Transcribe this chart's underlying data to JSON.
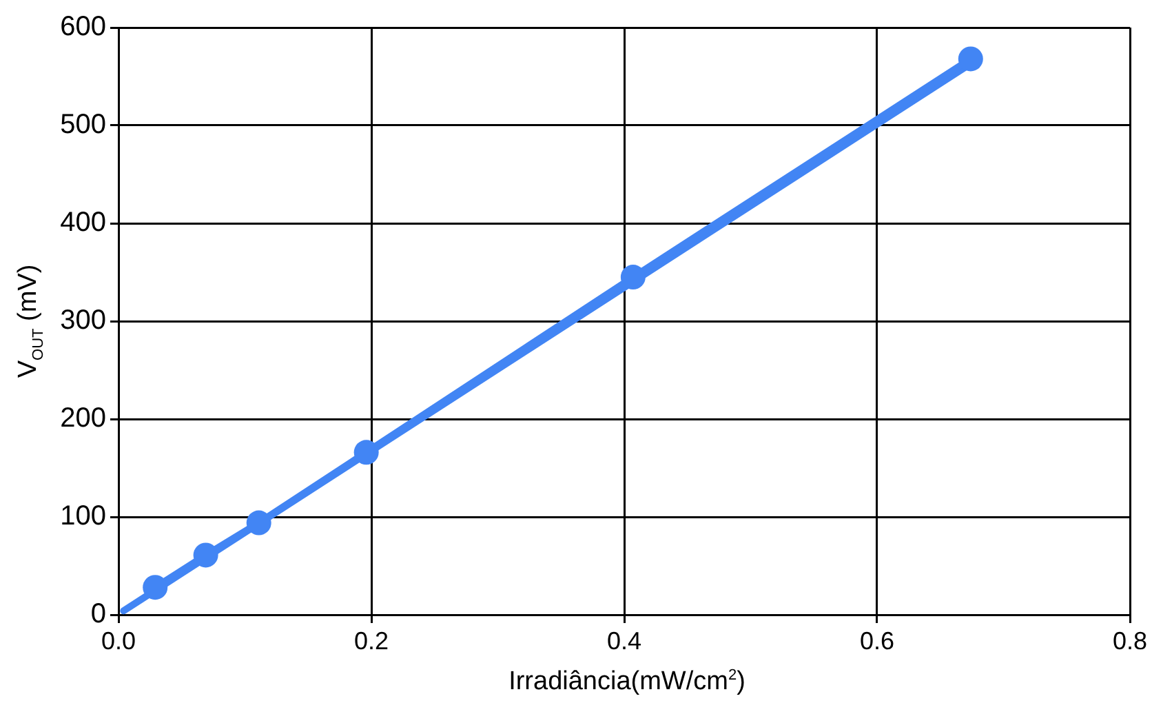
{
  "chart_data": {
    "type": "line",
    "xlabel": "Irradiância(mW/cm$^{2}$)",
    "ylabel": "V$_{OUT}$ (mV)",
    "xlim": [
      0,
      0.8
    ],
    "xticks": [
      {
        "value": 0,
        "label": "0.0"
      },
      {
        "value": 0.2,
        "label": "0.2"
      },
      {
        "value": 0.4,
        "label": "0.4"
      },
      {
        "value": 0.6,
        "label": "0.6"
      },
      {
        "value": 0.8,
        "label": "0.8"
      }
    ],
    "ylim": [
      0,
      600
    ],
    "yticks": [
      0,
      100,
      200,
      300,
      400,
      500,
      600
    ],
    "grid": true,
    "series": [
      {
        "type": "line",
        "marker": "circle",
        "color": "#4285f4",
        "x": [
          0.029,
          0.069,
          0.111,
          0.196,
          0.407,
          0.674
        ],
        "values": [
          28,
          61,
          94,
          166,
          345,
          568
        ]
      },
      {
        "type": "line",
        "marker": "none",
        "color": "#4285f4",
        "x": [
          0.004,
          0.674
        ],
        "values": [
          4,
          563
        ]
      }
    ]
  }
}
